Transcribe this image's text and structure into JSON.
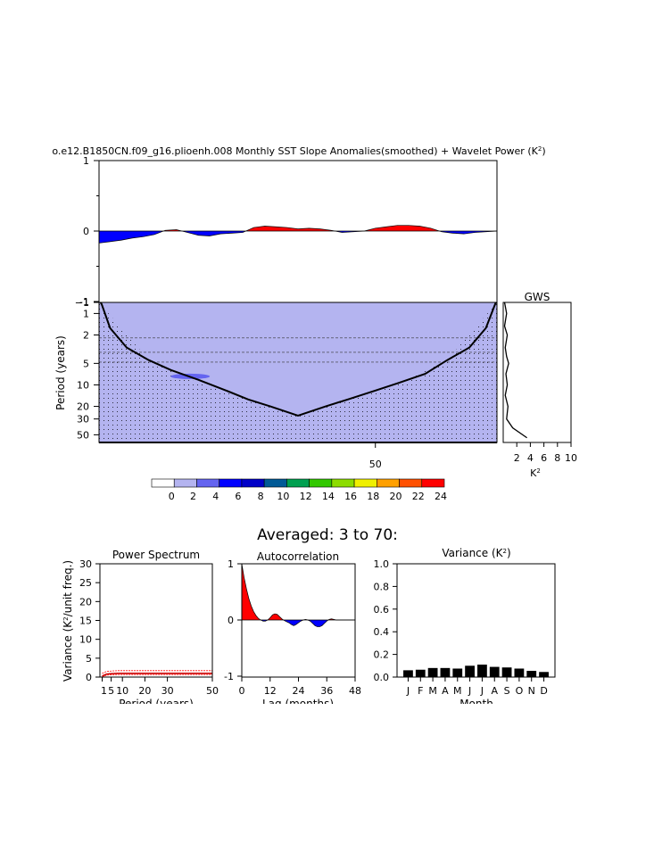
{
  "page": {
    "main_title": "o.e12.B1850CN.f09_g16.plioenh.008 Monthly SST Slope Anomalies(smoothed) + Wavelet Power (K",
    "main_title_sup": "2",
    "main_title_end": ")",
    "averaged_label": "Averaged: 3 to 70:"
  },
  "colors": {
    "positive": "#ff0000",
    "negative": "#0000ff",
    "wavelet_fill": "#b4b4f0",
    "wavelet_blob": "#6464f0"
  },
  "chart_data": [
    {
      "id": "timeseries",
      "type": "area",
      "title": "Monthly SST Slope Anomalies(smoothed)",
      "ylim": [
        -1,
        1
      ],
      "y_ticks": [
        "1",
        "0",
        "-1"
      ],
      "xlim": [
        0,
        72
      ],
      "x": [
        0,
        2,
        4,
        6,
        8,
        10,
        12,
        14,
        16,
        18,
        20,
        22,
        24,
        26,
        28,
        30,
        32,
        34,
        36,
        38,
        40,
        42,
        44,
        46,
        48,
        50,
        52,
        54,
        56,
        58,
        60,
        62,
        64,
        66,
        68,
        70,
        72
      ],
      "values": [
        -0.17,
        -0.15,
        -0.13,
        -0.1,
        -0.08,
        -0.05,
        0.01,
        0.02,
        -0.02,
        -0.06,
        -0.07,
        -0.04,
        -0.03,
        -0.02,
        0.05,
        0.07,
        0.06,
        0.05,
        0.03,
        0.04,
        0.03,
        0.01,
        -0.02,
        -0.01,
        0.0,
        0.04,
        0.06,
        0.08,
        0.08,
        0.07,
        0.04,
        -0.01,
        -0.03,
        -0.04,
        -0.02,
        -0.01,
        0.0
      ]
    },
    {
      "id": "wavelet",
      "type": "heatmap",
      "ylabel": "Period (years)",
      "y_ticks": [
        "1",
        "2",
        "5",
        "10",
        "20",
        "30",
        "50"
      ],
      "x_ticks": [
        "50"
      ],
      "xlim": [
        0,
        72
      ],
      "period_range": [
        0.7,
        64
      ],
      "cone_x": [
        0,
        9,
        18,
        27,
        36,
        45,
        54,
        63,
        72
      ],
      "cone_period": [
        0.7,
        4.5,
        9.5,
        16,
        27,
        16,
        9.5,
        4.5,
        0.7
      ],
      "dashed_periods": [
        2.2,
        3.5,
        4.8
      ]
    },
    {
      "id": "gws",
      "type": "line",
      "title": "GWS",
      "xlabel": "K",
      "xlabel_sup": "2",
      "x_ticks": [
        "2",
        "4",
        "6",
        "8",
        "10"
      ],
      "xlim": [
        0,
        10
      ],
      "period": [
        0.7,
        1,
        1.5,
        2,
        3,
        4,
        5,
        7,
        10,
        14,
        20,
        30,
        40,
        55
      ],
      "power": [
        0.2,
        0.5,
        0.2,
        0.6,
        0.3,
        0.5,
        0.8,
        0.4,
        0.6,
        0.3,
        0.7,
        0.5,
        1.4,
        3.5
      ]
    },
    {
      "id": "colorbar",
      "type": "table",
      "labels": [
        "0",
        "2",
        "4",
        "6",
        "8",
        "10",
        "12",
        "14",
        "16",
        "18",
        "20",
        "22",
        "24"
      ],
      "colors": [
        "#ffffff",
        "#b4b4f0",
        "#6464f0",
        "#0000ff",
        "#0000c8",
        "#005a96",
        "#00a050",
        "#32c800",
        "#8cdc00",
        "#f0f000",
        "#ffa000",
        "#ff5000",
        "#ff0000"
      ]
    },
    {
      "id": "power_spectrum",
      "type": "line",
      "title": "Power Spectrum",
      "xlabel": "Period (years)",
      "ylabel": "Variance (K",
      "ylabel_sup": "2",
      "ylabel_end": "/unit freq.)",
      "ylim": [
        0,
        30
      ],
      "y_ticks": [
        "0",
        "5",
        "10",
        "15",
        "20",
        "25",
        "30"
      ],
      "x_ticks": [
        "1",
        "5",
        "10",
        "20",
        "30",
        "50"
      ],
      "xlim": [
        0,
        50
      ],
      "x": [
        1,
        3,
        5,
        8,
        10,
        15,
        20,
        25,
        30,
        35,
        40,
        45,
        50
      ],
      "values": [
        0.3,
        0.8,
        0.9,
        1.0,
        1.0,
        1.0,
        1.0,
        1.0,
        1.0,
        1.0,
        1.0,
        1.0,
        1.0
      ],
      "upper": [
        1.0,
        1.5,
        1.6,
        1.7,
        1.7,
        1.7,
        1.7,
        1.7,
        1.7,
        1.7,
        1.7,
        1.7,
        1.7
      ],
      "lower": [
        0.1,
        0.5,
        0.6,
        0.65,
        0.65,
        0.65,
        0.65,
        0.65,
        0.65,
        0.65,
        0.65,
        0.65,
        0.65
      ]
    },
    {
      "id": "autocorrelation",
      "type": "area",
      "title": "Autocorrelation",
      "xlabel": "Lag (months)",
      "ylim": [
        -1,
        1
      ],
      "y_ticks": [
        "1",
        "0",
        "-1"
      ],
      "x_ticks": [
        "0",
        "12",
        "24",
        "36",
        "48"
      ],
      "xlim": [
        0,
        48
      ],
      "x": [
        0,
        1,
        2,
        3,
        4,
        5,
        6,
        7,
        8,
        9,
        10,
        11,
        12,
        13,
        14,
        15,
        16,
        17,
        18,
        19,
        20,
        21,
        22,
        23,
        24,
        25,
        26,
        27,
        28,
        29,
        30,
        31,
        32,
        33,
        34,
        35,
        36,
        37,
        38,
        39,
        40,
        41,
        42,
        43,
        44,
        45,
        46,
        47,
        48
      ],
      "values": [
        1.0,
        0.75,
        0.55,
        0.38,
        0.25,
        0.15,
        0.08,
        0.03,
        0.0,
        -0.02,
        -0.02,
        0.0,
        0.04,
        0.09,
        0.11,
        0.1,
        0.06,
        0.02,
        -0.01,
        -0.03,
        -0.05,
        -0.08,
        -0.1,
        -0.08,
        -0.05,
        -0.02,
        0.0,
        0.01,
        0.0,
        -0.02,
        -0.06,
        -0.1,
        -0.12,
        -0.12,
        -0.1,
        -0.06,
        -0.02,
        0.01,
        0.02,
        0.01,
        0.0,
        0.0,
        0.0,
        0.0,
        0.0,
        0.0,
        0.0,
        0.0,
        0.0
      ]
    },
    {
      "id": "variance",
      "type": "bar",
      "title": "Variance (K",
      "title_sup": "2",
      "title_end": ")",
      "xlabel": "Month",
      "ylim": [
        0,
        1.0
      ],
      "y_ticks": [
        "0.0",
        "0.2",
        "0.4",
        "0.6",
        "0.8",
        "1.0"
      ],
      "categories": [
        "J",
        "F",
        "M",
        "A",
        "M",
        "J",
        "J",
        "A",
        "S",
        "O",
        "N",
        "D"
      ],
      "values": [
        0.06,
        0.065,
        0.08,
        0.08,
        0.075,
        0.1,
        0.11,
        0.09,
        0.085,
        0.075,
        0.055,
        0.045
      ]
    }
  ]
}
